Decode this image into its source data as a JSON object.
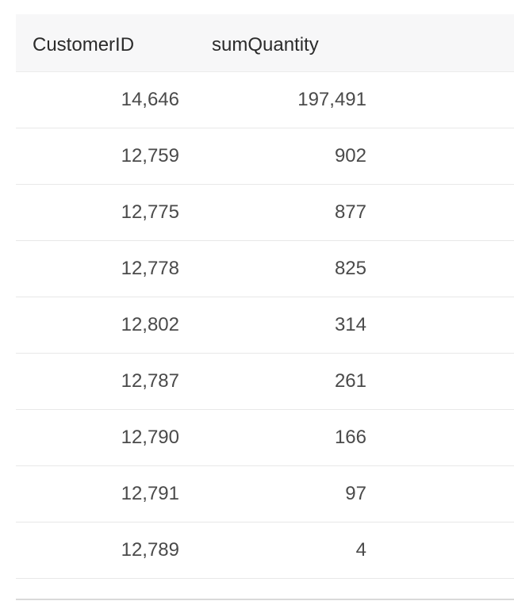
{
  "table": {
    "columns": [
      "CustomerID",
      "sumQuantity"
    ],
    "rows": [
      [
        "14,646",
        "197,491"
      ],
      [
        "12,759",
        "902"
      ],
      [
        "12,775",
        "877"
      ],
      [
        "12,778",
        "825"
      ],
      [
        "12,802",
        "314"
      ],
      [
        "12,787",
        "261"
      ],
      [
        "12,790",
        "166"
      ],
      [
        "12,791",
        "97"
      ],
      [
        "12,789",
        "4"
      ]
    ]
  }
}
